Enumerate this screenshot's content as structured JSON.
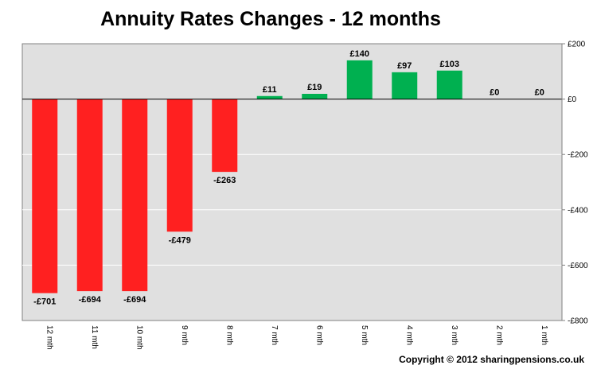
{
  "chart_data": {
    "type": "bar",
    "title": "Annuity Rates Changes - 12 months",
    "categories": [
      "12 mth",
      "11 mth",
      "10 mth",
      "9 mth",
      "8 mth",
      "7 mth",
      "6 mth",
      "5 mth",
      "4 mth",
      "3 mth",
      "2 mth",
      "1 mth"
    ],
    "values": [
      -701,
      -694,
      -694,
      -479,
      -263,
      11,
      19,
      140,
      97,
      103,
      0,
      0
    ],
    "data_labels": [
      "-£701",
      "-£694",
      "-£694",
      "-£479",
      "-£263",
      "£11",
      "£19",
      "£140",
      "£97",
      "£103",
      "£0",
      "£0"
    ],
    "ylim": [
      -800,
      200
    ],
    "yticks": [
      200,
      0,
      -200,
      -400,
      -600,
      -800
    ],
    "ytick_labels": [
      "£200",
      "£0",
      "-£200",
      "-£400",
      "-£600",
      "-£800"
    ],
    "y_axis_position": "right",
    "grid": true,
    "xlabel": "",
    "ylabel": "",
    "colors": {
      "negative": "#ff2020",
      "positive": "#00b050",
      "plot_background": "#e0e0e0",
      "gridline": "#ffffff"
    }
  },
  "footer": {
    "copyright": "Copyright © 2012 sharingpensions.co.uk"
  }
}
